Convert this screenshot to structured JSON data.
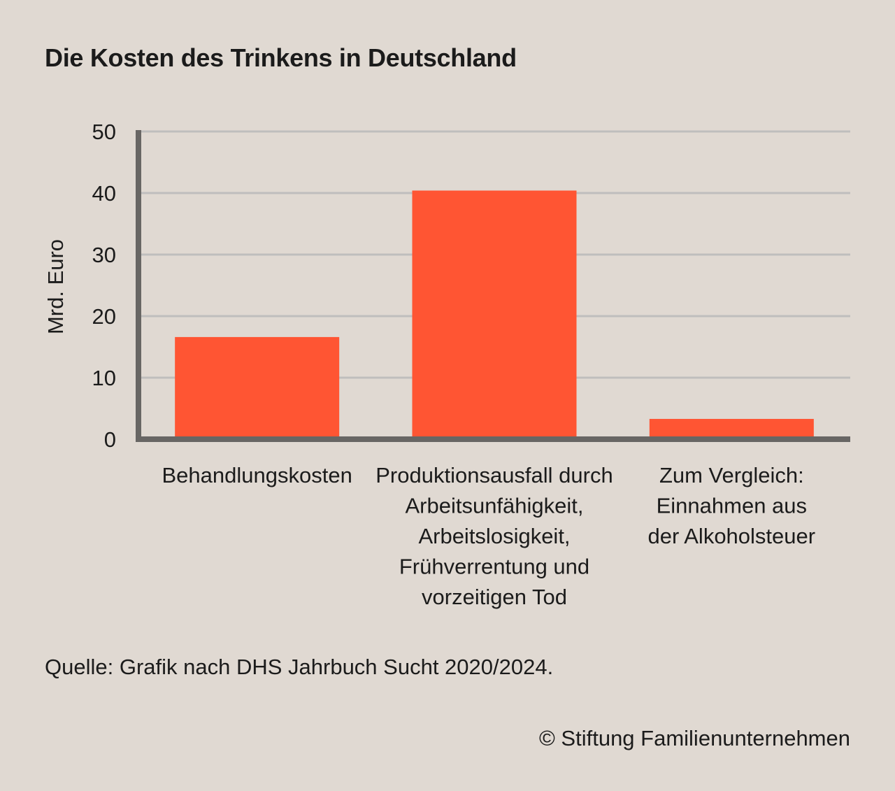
{
  "title": "Die Kosten des Trinkens in Deutschland",
  "source": "Quelle: Grafik nach DHS Jahrbuch Sucht 2020/2024.",
  "copyright": "© Stiftung Familienunternehmen",
  "chart_data": {
    "type": "bar",
    "ylabel": "Mrd. Euro",
    "ylim": [
      0,
      50
    ],
    "yticks": [
      0,
      10,
      20,
      30,
      40,
      50
    ],
    "grid": true,
    "categories": [
      [
        "Behandlungskosten"
      ],
      [
        "Produktionsausfall durch",
        "Arbeitsunfähigkeit,",
        "Arbeitslosigkeit,",
        "Frühverrentung und",
        "vorzeitigen Tod"
      ],
      [
        "Zum Vergleich:",
        "Einnahmen aus",
        "der Alkoholsteuer"
      ]
    ],
    "values": [
      16.6,
      40.4,
      3.3
    ],
    "colors": {
      "bar": "#ff5533",
      "axis": "#686664",
      "grid": "#bfbebd",
      "text": "#1b1b1b"
    }
  }
}
